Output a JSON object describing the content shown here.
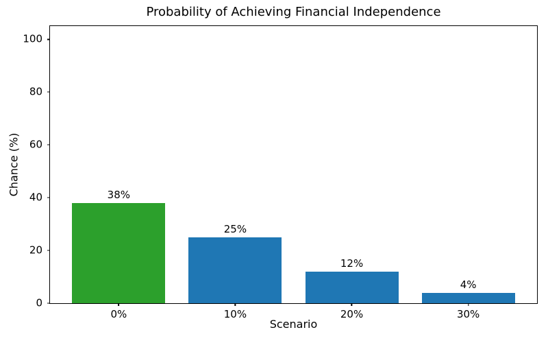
{
  "figure": {
    "background": "#ffffff"
  },
  "chart_data": {
    "type": "bar",
    "title": "Probability of Achieving Financial Independence",
    "xlabel": "Scenario",
    "ylabel": "Chance (%)",
    "categories": [
      "0%",
      "10%",
      "20%",
      "30%"
    ],
    "values": [
      38,
      25,
      12,
      4
    ],
    "bar_labels": [
      "38%",
      "25%",
      "12%",
      "4%"
    ],
    "bar_colors": [
      "#2ca02c",
      "#1f77b4",
      "#1f77b4",
      "#1f77b4"
    ],
    "yticks": [
      0,
      20,
      40,
      60,
      80,
      100
    ],
    "ylim": [
      0,
      105
    ],
    "xlim": [
      -0.59,
      3.59
    ],
    "bar_width_units": 0.8,
    "grid": false,
    "legend": null,
    "axis_color": "#000000",
    "text_color": "#000000"
  }
}
